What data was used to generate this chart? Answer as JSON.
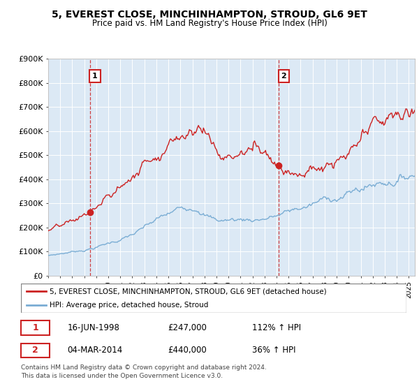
{
  "title": "5, EVEREST CLOSE, MINCHINHAMPTON, STROUD, GL6 9ET",
  "subtitle": "Price paid vs. HM Land Registry's House Price Index (HPI)",
  "hpi_label": "HPI: Average price, detached house, Stroud",
  "property_label": "5, EVEREST CLOSE, MINCHINHAMPTON, STROUD, GL6 9ET (detached house)",
  "sale1_date": "16-JUN-1998",
  "sale1_price": 247000,
  "sale1_hpi": "112% ↑ HPI",
  "sale2_date": "04-MAR-2014",
  "sale2_price": 440000,
  "sale2_hpi": "36% ↑ HPI",
  "footer": "Contains HM Land Registry data © Crown copyright and database right 2024.\nThis data is licensed under the Open Government Licence v3.0.",
  "hpi_color": "#7aadd4",
  "property_color": "#cc2222",
  "vline_color": "#cc2222",
  "plot_bg_color": "#dce9f5",
  "background_color": "#ffffff",
  "grid_color": "#ffffff",
  "ylim": [
    0,
    900000
  ],
  "yticks": [
    0,
    100000,
    200000,
    300000,
    400000,
    500000,
    600000,
    700000,
    800000,
    900000
  ],
  "xlim_start": 1995.0,
  "xlim_end": 2025.5,
  "sale1_x": 1998.46,
  "sale2_x": 2014.17,
  "sale1_marker_y": 247000,
  "sale2_marker_y": 440000
}
